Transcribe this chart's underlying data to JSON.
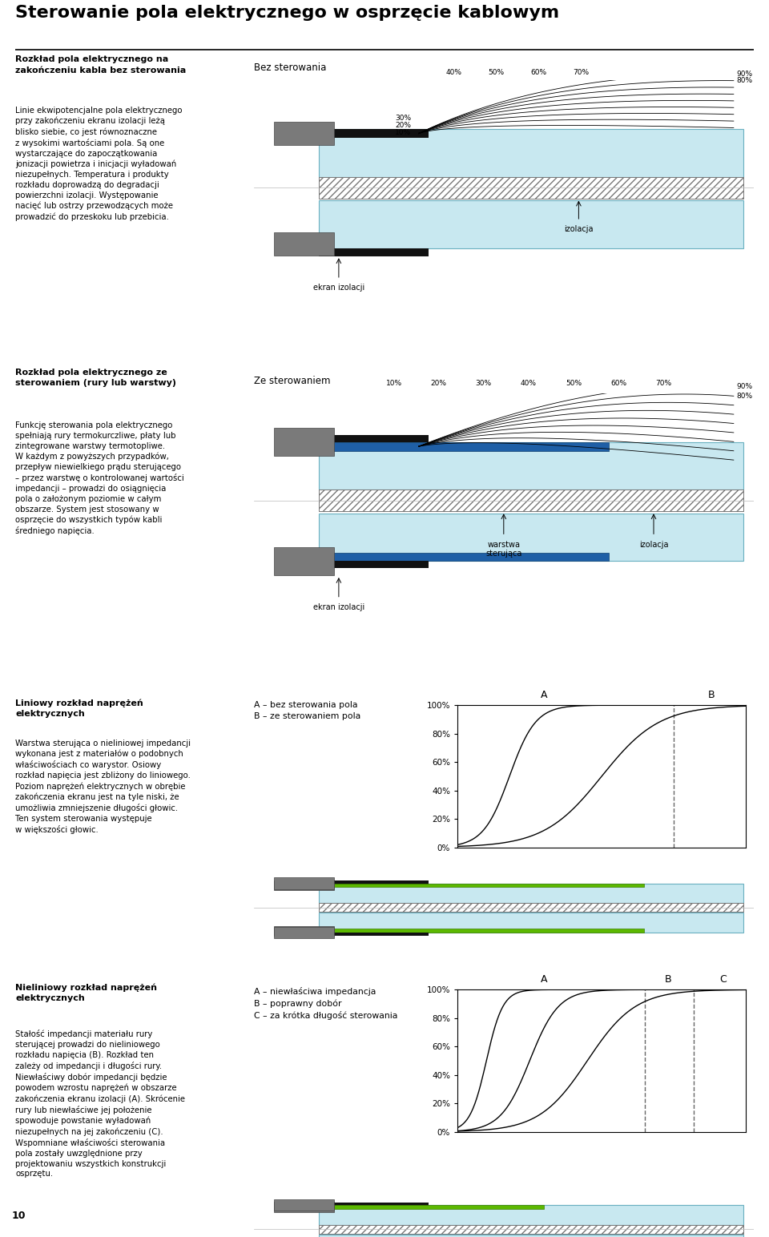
{
  "title": "Sterowanie pola elektrycznego w osprzęcie kablowym",
  "bg_color": "#ffffff",
  "insulation_color": "#c8e8f0",
  "section1": {
    "heading_bold": "Rozkład pola elektrycznego na\nzakończeniu kabla bez sterowania",
    "text": "Linie ekwipotencjalne pola elektrycznego\nprzy zakończeniu ekranu izolacji leżą\nblisko siebie, co jest równoznaczne\nz wysokimi wartościami pola. Są one\nwystarczające do zapoczątkowania\njonizacji powietrza i inicjacji wyładowań\nniezupełnych. Temperatura i produkty\nrozkładu doprowadzą do degradacji\npowierzchni izolacji. Występowanie\nnacięć lub ostrzy przewodzących może\nprowadzić do przeskoku lub przebicia.",
    "label_left": "Bez sterowania",
    "label_ekran": "ekran izolacji",
    "label_izolacja": "izolacja"
  },
  "section2": {
    "heading_bold": "Rozkład pola elektrycznego ze\nsterowaniem (rury lub warstwy)",
    "text": "Funkcję sterowania pola elektrycznego\nspełniają rury termokurczliwe, płaty lub\nzintegrowane warstwy termotopliwe.\nW każdym z powyższych przypadków,\nprzepływ niewielkiego prądu sterującego\n– przez warstwę o kontrolowanej wartości\nimpedancji – prowadzi do osiągnięcia\npola o założonym poziomie w całym\nobszarze. System jest stosowany w\nosprzęcie do wszystkich typów kabli\nśredniego napięcia.",
    "label_left": "Ze sterowaniem",
    "label_ekran": "ekran izolacji",
    "label_warstwa": "warstwa\nsterująca",
    "label_izolacja": "izolacja"
  },
  "section3": {
    "heading_bold": "Liniowy rozkład naprężeń\nelektrycznych",
    "text": "Warstwa sterująca o nieliniowej impedancji\nwykonana jest z materiałów o podobnych\nwłaściwościach co warystor. Osiowy\nrozkład napięcia jest zbliżony do liniowego.\nPoziom naprężeń elektrycznych w obrębie\nzakończenia ekranu jest na tyle niski, że\numożliwia zmniejszenie długości głowic.\nTen system sterowania występuje\nw większości głowic.",
    "label_left": "A – bez sterowania pola\nB – ze sterowaniem pola",
    "label_A": "A",
    "label_B": "B"
  },
  "section4": {
    "heading_bold": "Nieliniowy rozkład naprężeń\nelektrycznych",
    "text": "Stałość impedancji materiału rury\nsterującej prowadzi do nieliniowego\nrozkładu napięcia (B). Rozkład ten\nzależy od impedancji i długości rury.\nNiewłaściwy dobór impedancji będzie\npowodem wzrostu naprężeń w obszarze\nzakończenia ekranu izolacji (A). Skrócenie\nrury lub niewłaściwe jej położenie\nspowoduje powstanie wyładowań\nniezupełnych na jej zakończeniu (C).\nWspomniane właściwości sterowania\npola zostały uwzględnione przy\nprojektowaniu wszystkich konstrukcji\nosprzętu.",
    "label_left": "A – niewłaściwa impedancja\nB – poprawny dobór\nC – za krótka długość sterowania",
    "label_A": "A",
    "label_B": "B",
    "label_C": "C"
  },
  "page_number": "10",
  "pct_labels": [
    "10%",
    "20%",
    "30%",
    "40%",
    "50%",
    "60%",
    "70%",
    "80%",
    "90%"
  ]
}
